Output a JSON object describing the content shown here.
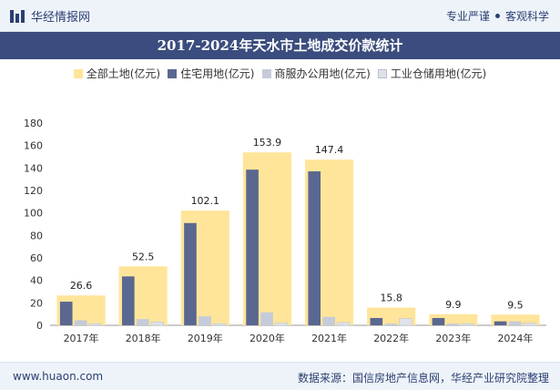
{
  "header": {
    "brand": "华经情报网",
    "slogan_left": "专业严谨",
    "slogan_right": "客观科学"
  },
  "footer": {
    "website": "www.huaon.com",
    "source": "数据来源：国信房地产信息网，华经产业研究院整理"
  },
  "colors": {
    "total": "#ffe59a",
    "residential": "#5a6790",
    "commercial": "#c5cbd9",
    "industrial": "#dfe2ea",
    "header_bg": "#3b4d7e"
  },
  "chart_data": {
    "type": "bar",
    "title": "2017-2024年天水市土地成交价款统计",
    "categories": [
      "2017年",
      "2018年",
      "2019年",
      "2020年",
      "2021年",
      "2022年",
      "2023年",
      "2024年"
    ],
    "series": [
      {
        "name": "全部土地(亿元)",
        "values": [
          26.6,
          52.5,
          102.1,
          153.9,
          147.4,
          15.8,
          9.9,
          9.5
        ]
      },
      {
        "name": "住宅用地(亿元)",
        "values": [
          21,
          43.5,
          91,
          138.5,
          137,
          6.5,
          6.5,
          3.5
        ]
      },
      {
        "name": "商服办公用地(亿元)",
        "values": [
          4.5,
          5.5,
          8,
          11.5,
          7.5,
          1.5,
          1.5,
          3.5
        ]
      },
      {
        "name": "工业仓储用地(亿元)",
        "values": [
          1.5,
          3,
          1.5,
          2,
          2.5,
          6,
          1.5,
          2
        ]
      }
    ],
    "ylim": [
      0,
      180
    ],
    "yticks": [
      0,
      20,
      40,
      60,
      80,
      100,
      120,
      140,
      160,
      180
    ],
    "data_labels_series": 0,
    "legend_position": "top"
  }
}
